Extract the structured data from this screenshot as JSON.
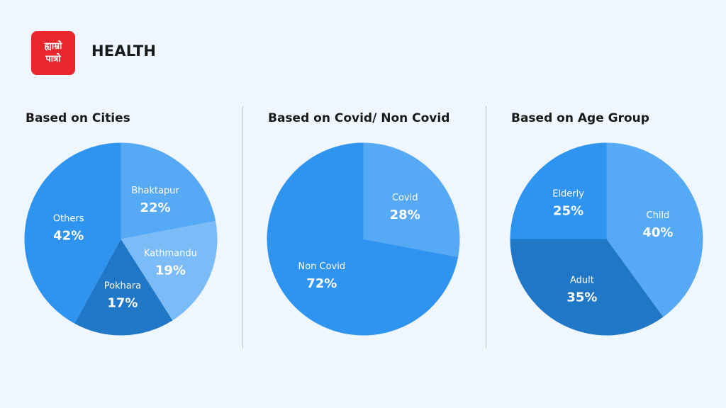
{
  "header": {
    "logo_line1": "ह्याम्रो",
    "logo_line2": "पात्रो",
    "title": "HEALTH"
  },
  "colors": {
    "background": "#f0f6fd",
    "brand_red": "#e8262c",
    "blue_mid": "#2e94f0",
    "blue_light": "#55a9f5",
    "blue_lighter": "#7bbcf8",
    "blue_dark": "#2077c6"
  },
  "chart_data": [
    {
      "type": "pie",
      "title": "Based on Cities",
      "slices": [
        {
          "label": "Bhaktapur",
          "value": 22,
          "display": "22%",
          "color": "#55a9f5"
        },
        {
          "label": "Kathmandu",
          "value": 19,
          "display": "19%",
          "color": "#7bbcf8"
        },
        {
          "label": "Pokhara",
          "value": 17,
          "display": "17%",
          "color": "#2077c6"
        },
        {
          "label": "Others",
          "value": 42,
          "display": "42%",
          "color": "#2e94f0"
        }
      ]
    },
    {
      "type": "pie",
      "title": "Based on Covid/ Non Covid",
      "slices": [
        {
          "label": "Covid",
          "value": 28,
          "display": "28%",
          "color": "#55a9f5"
        },
        {
          "label": "Non Covid",
          "value": 72,
          "display": "72%",
          "color": "#2e94f0"
        }
      ]
    },
    {
      "type": "pie",
      "title": "Based on Age Group",
      "slices": [
        {
          "label": "Child",
          "value": 40,
          "display": "40%",
          "color": "#55a9f5"
        },
        {
          "label": "Adult",
          "value": 35,
          "display": "35%",
          "color": "#2077c6"
        },
        {
          "label": "Elderly",
          "value": 25,
          "display": "25%",
          "color": "#2e94f0"
        }
      ]
    }
  ]
}
